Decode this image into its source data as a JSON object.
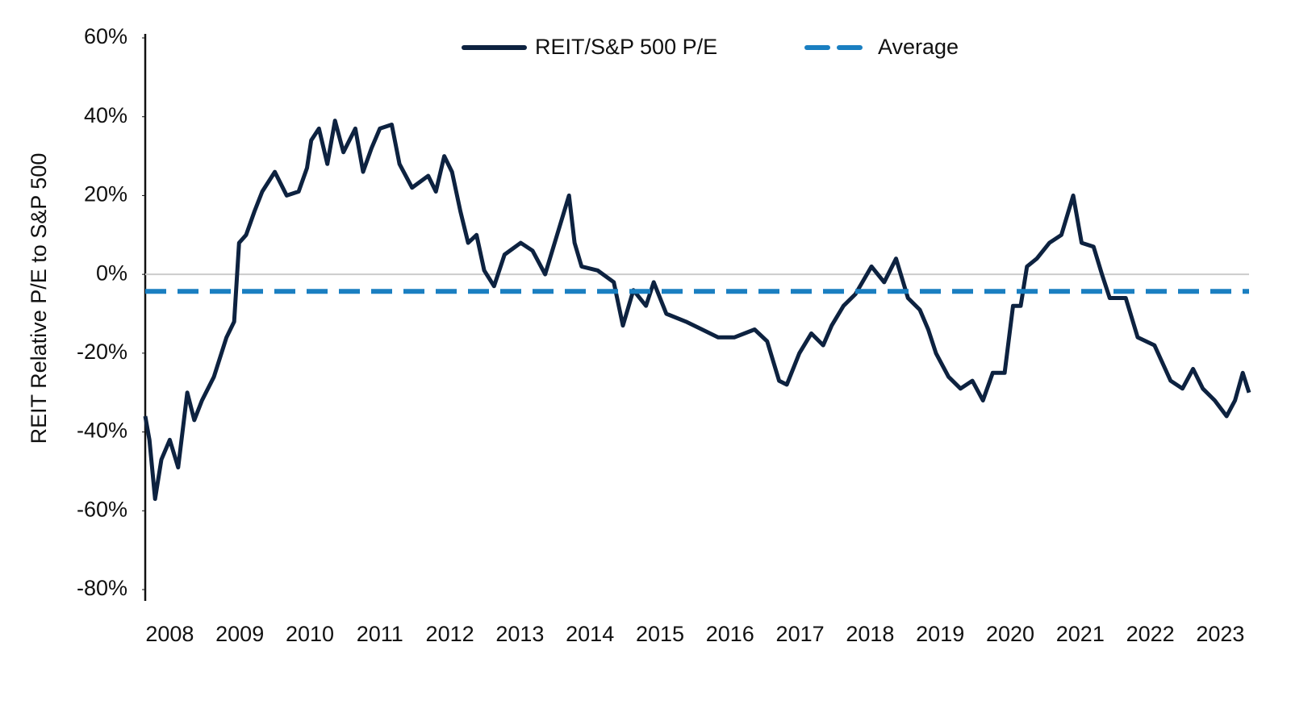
{
  "chart_data": {
    "type": "line",
    "y_label": "REIT Relative P/E to S&P 500",
    "series": [
      {
        "name": "REIT/S&P 500 P/E",
        "color": "#0d2240",
        "style": "solid",
        "x": [
          2007.65,
          2007.71,
          2007.79,
          2007.88,
          2008.0,
          2008.12,
          2008.25,
          2008.35,
          2008.46,
          2008.63,
          2008.81,
          2008.92,
          2008.99,
          2009.09,
          2009.21,
          2009.32,
          2009.5,
          2009.67,
          2009.84,
          2009.96,
          2010.02,
          2010.13,
          2010.25,
          2010.36,
          2010.48,
          2010.65,
          2010.76,
          2010.88,
          2011.0,
          2011.17,
          2011.28,
          2011.46,
          2011.69,
          2011.8,
          2011.92,
          2012.03,
          2012.15,
          2012.26,
          2012.38,
          2012.49,
          2012.63,
          2012.78,
          2013.01,
          2013.18,
          2013.36,
          2013.53,
          2013.7,
          2013.78,
          2013.88,
          2014.11,
          2014.34,
          2014.47,
          2014.62,
          2014.8,
          2014.91,
          2015.09,
          2015.37,
          2015.6,
          2015.83,
          2016.06,
          2016.35,
          2016.53,
          2016.7,
          2016.81,
          2016.99,
          2017.16,
          2017.33,
          2017.45,
          2017.62,
          2017.79,
          2018.02,
          2018.2,
          2018.37,
          2018.54,
          2018.71,
          2018.83,
          2018.94,
          2019.12,
          2019.29,
          2019.46,
          2019.61,
          2019.75,
          2019.92,
          2020.04,
          2020.15,
          2020.24,
          2020.38,
          2020.56,
          2020.73,
          2020.9,
          2021.02,
          2021.19,
          2021.31,
          2021.42,
          2021.65,
          2021.82,
          2022.06,
          2022.29,
          2022.46,
          2022.61,
          2022.75,
          2022.92,
          2023.09,
          2023.21,
          2023.32,
          2023.41
        ],
        "values": [
          -36,
          -42,
          -57,
          -47,
          -42,
          -49,
          -30,
          -37,
          -32,
          -26,
          -16,
          -12,
          8,
          10,
          16,
          21,
          26,
          20,
          21,
          27,
          34,
          37,
          28,
          39,
          31,
          37,
          26,
          32,
          37,
          38,
          28,
          22,
          25,
          21,
          30,
          26,
          16,
          8,
          10,
          1,
          -3,
          5,
          8,
          6,
          0,
          10,
          20,
          8,
          2,
          1,
          -2,
          -13,
          -4,
          -8,
          -2,
          -10,
          -12,
          -14,
          -16,
          -16,
          -14,
          -17,
          -27,
          -28,
          -20,
          -15,
          -18,
          -13,
          -8,
          -5,
          2,
          -2,
          4,
          -6,
          -9,
          -14,
          -20,
          -26,
          -29,
          -27,
          -32,
          -25,
          -25,
          -8,
          -8,
          2,
          4,
          8,
          10,
          20,
          8,
          7,
          0,
          -6,
          -6,
          -16,
          -18,
          -27,
          -29,
          -24,
          -29,
          -32,
          -36,
          -32,
          -25,
          -30
        ]
      },
      {
        "name": "Average",
        "color": "#1a7fc1",
        "style": "dashed",
        "x": [
          2007.65,
          2023.41
        ],
        "values": [
          -4.3,
          -4.3
        ]
      }
    ],
    "reference_line": 0,
    "xlim": [
      2007.65,
      2023.41
    ],
    "xticks": [
      2008,
      2009,
      2010,
      2011,
      2012,
      2013,
      2014,
      2015,
      2016,
      2017,
      2018,
      2019,
      2020,
      2021,
      2022,
      2023
    ],
    "ylim": [
      -80,
      60
    ],
    "yticks": [
      {
        "value": 60,
        "label": "60%"
      },
      {
        "value": 40,
        "label": "40%"
      },
      {
        "value": 20,
        "label": "20%"
      },
      {
        "value": 0,
        "label": "0%"
      },
      {
        "value": -20,
        "label": "-20%"
      },
      {
        "value": -40,
        "label": "-40%"
      },
      {
        "value": -60,
        "label": "-60%"
      },
      {
        "value": -80,
        "label": "-80%"
      }
    ],
    "legend": "top"
  }
}
